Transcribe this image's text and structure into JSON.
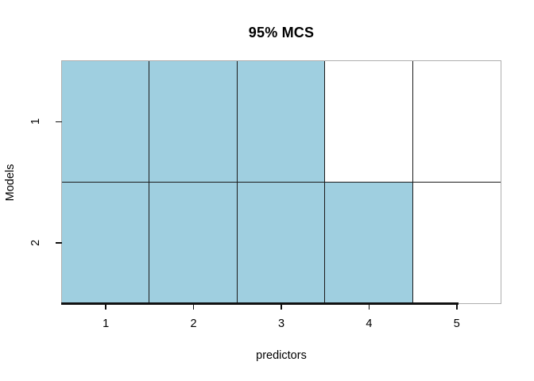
{
  "title": "95% MCS",
  "x_axis": {
    "label": "predictors",
    "tick_labels": [
      "1",
      "2",
      "3",
      "4",
      "5"
    ]
  },
  "y_axis": {
    "label": "Models",
    "tick_labels": [
      "1",
      "2"
    ]
  },
  "chart_data": {
    "type": "heatmap",
    "title": "95% MCS",
    "xlabel": "predictors",
    "ylabel": "Models",
    "x": [
      1,
      2,
      3,
      4,
      5
    ],
    "rows": [
      "1",
      "2"
    ],
    "matrix": [
      [
        1,
        1,
        1,
        0,
        0
      ],
      [
        1,
        1,
        1,
        1,
        0
      ]
    ],
    "xlim": [
      0.5,
      5.5
    ],
    "grid": "on",
    "legend_position": "none"
  },
  "colors": {
    "cell_fill": "#9fcfe0",
    "cell_empty": "#ffffff",
    "grid_line": "#1a1a1a",
    "box_line": "#aeaeae",
    "axis_line": "#111111",
    "background": "#ffffff",
    "text": "#000000"
  }
}
